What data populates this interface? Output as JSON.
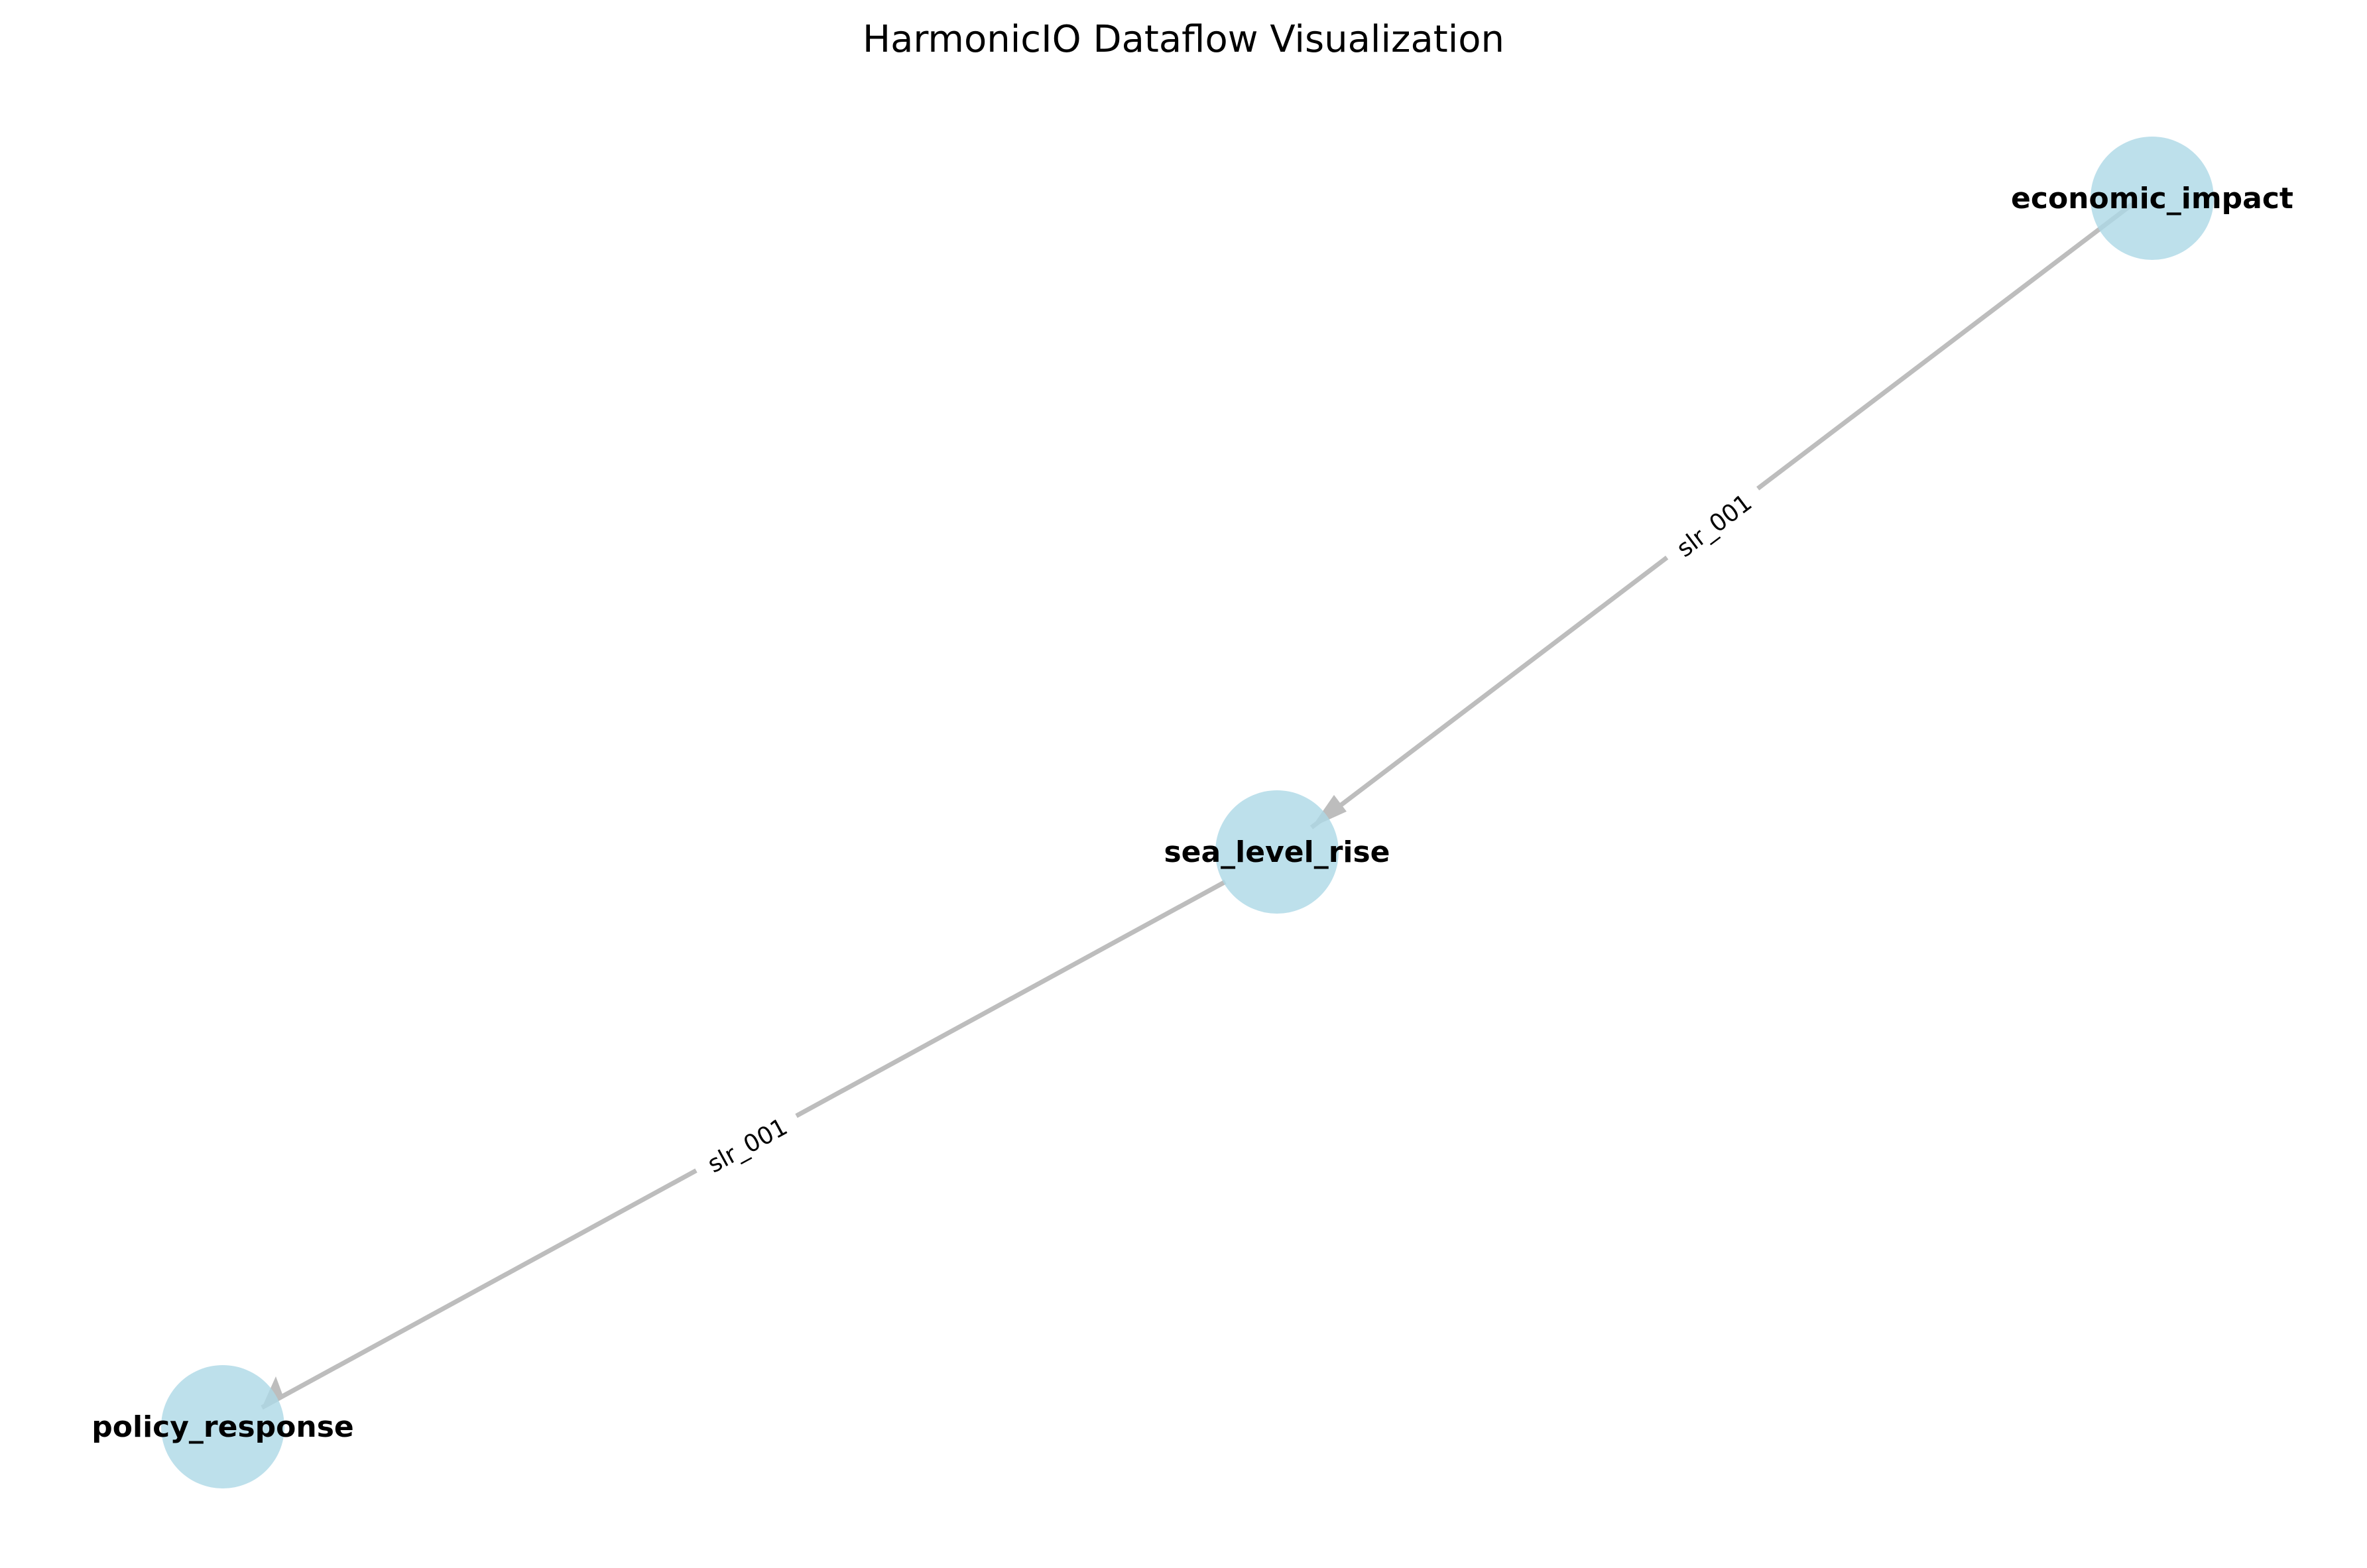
{
  "figure": {
    "title": "HarmonicIO Dataflow Visualization"
  },
  "colors": {
    "node_fill": "#add8e6",
    "edge": "#bdbdbd",
    "background": "#ffffff"
  },
  "graph": {
    "nodes": [
      {
        "id": "economic_impact",
        "label": "economic_impact"
      },
      {
        "id": "sea_level_rise",
        "label": "sea_level_rise"
      },
      {
        "id": "policy_response",
        "label": "policy_response"
      }
    ],
    "edges": [
      {
        "source": "economic_impact",
        "target": "sea_level_rise",
        "label": "slr_001"
      },
      {
        "source": "sea_level_rise",
        "target": "policy_response",
        "label": "slr_001"
      }
    ]
  }
}
